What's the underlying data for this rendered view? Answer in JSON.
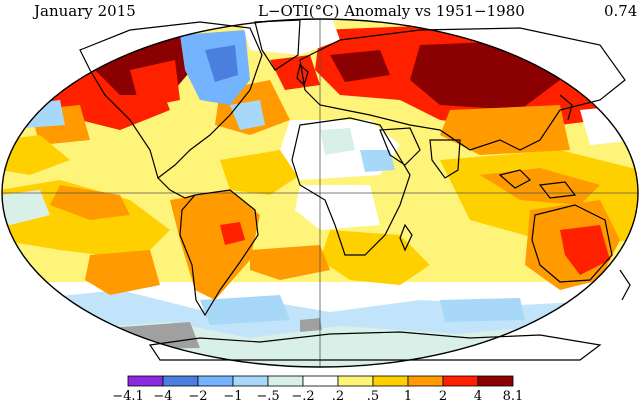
{
  "header": {
    "date": "January 2015",
    "title": "L−OTI(°C) Anomaly vs 1951−1980",
    "global_mean": "0.74"
  },
  "colors": {
    "ocean_white": "#ffffff",
    "missing": "#a0a0a0",
    "outline": "#000000"
  },
  "legend": {
    "boundaries": [
      "−4.1",
      "−4",
      "−2",
      "−1",
      "−.5",
      "−.2",
      ".2",
      ".5",
      "1",
      "2",
      "4",
      "8.1"
    ],
    "colors": [
      "#8a2be2",
      "#4a7fe0",
      "#74b4ff",
      "#a8d8f8",
      "#d8f0e8",
      "#ffffff",
      "#fff47a",
      "#ffd000",
      "#ff9a00",
      "#ff2000",
      "#8b0000"
    ]
  }
}
